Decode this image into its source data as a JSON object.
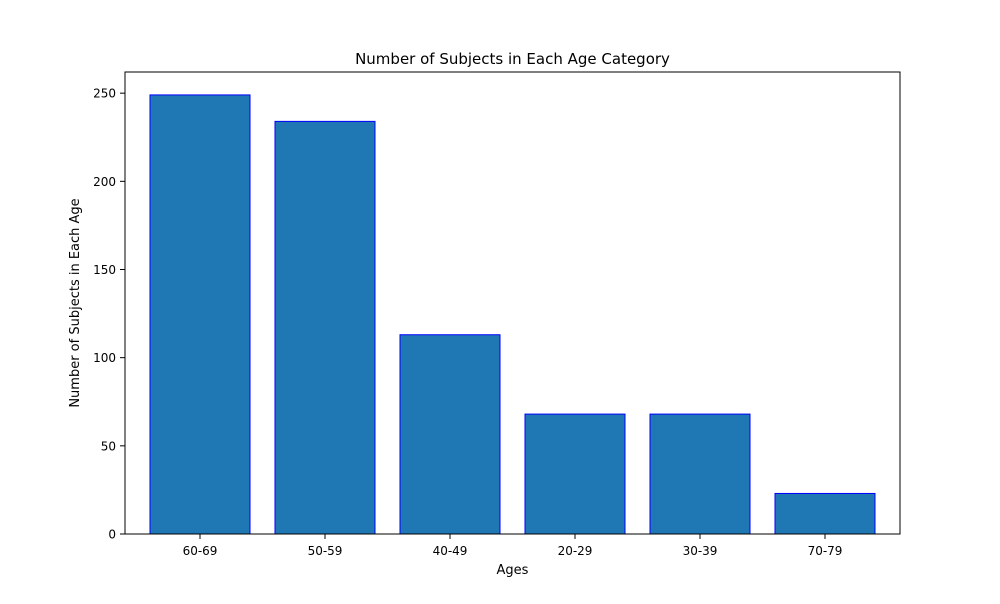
{
  "chart_data": {
    "type": "bar",
    "title": "Number of Subjects in Each Age Category",
    "xlabel": "Ages",
    "ylabel": "Number of Subjects in Each Age",
    "categories": [
      "60-69",
      "50-59",
      "40-49",
      "20-29",
      "30-39",
      "70-79"
    ],
    "values": [
      249,
      234,
      113,
      68,
      68,
      23
    ],
    "ylim": [
      0,
      262
    ],
    "yticks": [
      0,
      50,
      100,
      150,
      200,
      250
    ],
    "grid": false,
    "legend": "none",
    "bar_color": "#1f77b4",
    "bar_edge_color": "#0000ff"
  }
}
